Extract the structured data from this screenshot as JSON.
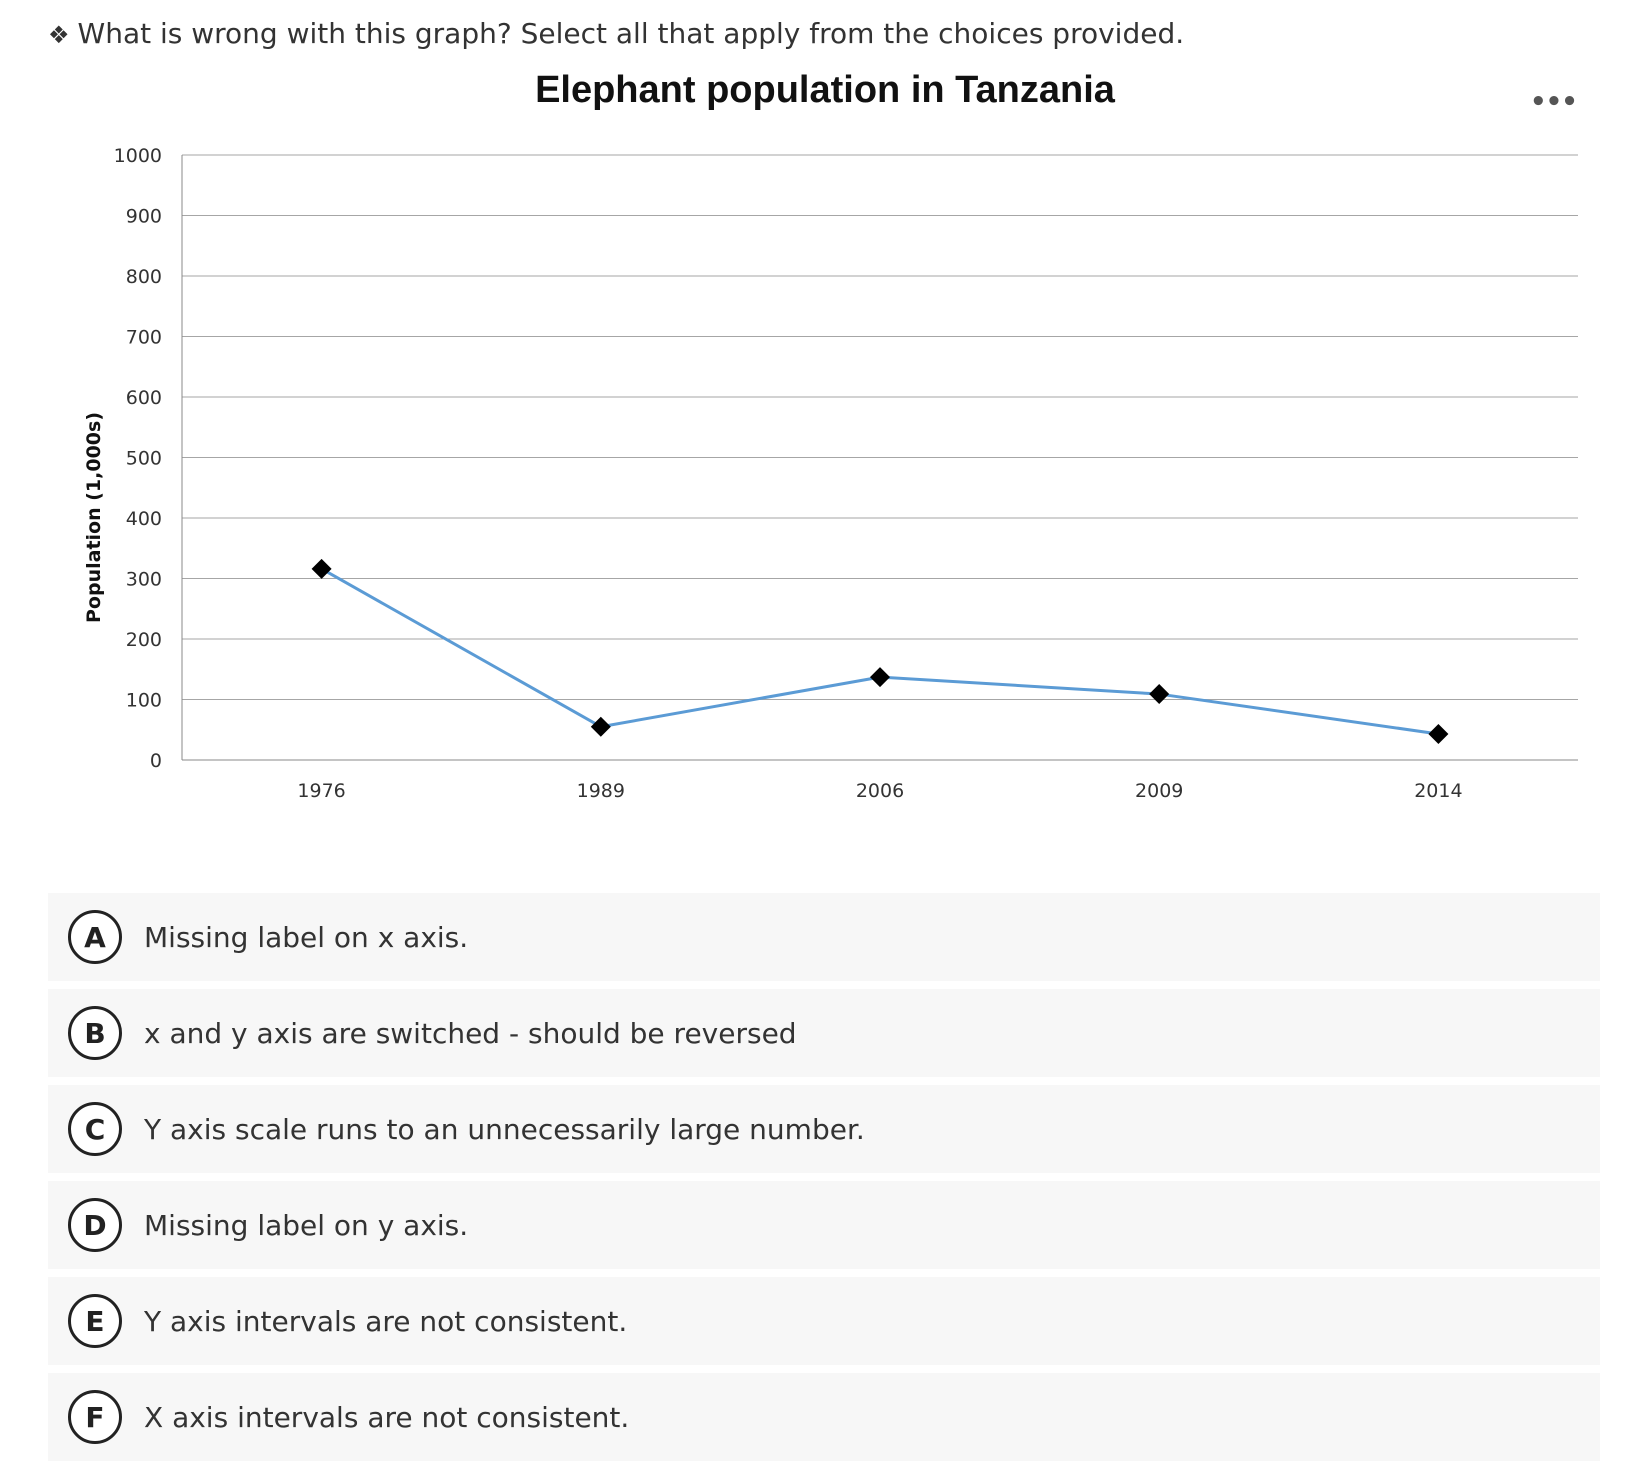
{
  "question": {
    "bullet": "❖",
    "text": "What is wrong with this graph?  Select all that apply from the choices provided."
  },
  "chart_menu": {
    "label": "•••",
    "icon": "more-horizontal-icon"
  },
  "chart_data": {
    "type": "line",
    "title": "Elephant population in Tanzania",
    "xlabel": "",
    "ylabel": "Population (1,000s)",
    "categories": [
      "1976",
      "1989",
      "2006",
      "2009",
      "2014"
    ],
    "series": [
      {
        "values": [
          316,
          55,
          137,
          109,
          43
        ]
      }
    ],
    "ylim": [
      0,
      1000
    ],
    "yticks": [
      0,
      100,
      200,
      300,
      400,
      500,
      600,
      700,
      800,
      900,
      1000
    ],
    "grid": true,
    "line_color": "#5b9bd5",
    "marker": "diamond",
    "marker_color": "#000000"
  },
  "options": [
    {
      "letter": "A",
      "text": "Missing label on x axis."
    },
    {
      "letter": "B",
      "text": "x and y axis are switched - should be reversed"
    },
    {
      "letter": "C",
      "text": "Y axis scale runs to an unnecessarily large number."
    },
    {
      "letter": "D",
      "text": "Missing label on y axis."
    },
    {
      "letter": "E",
      "text": "Y axis intervals are not consistent."
    },
    {
      "letter": "F",
      "text": "X axis intervals are not consistent."
    }
  ]
}
